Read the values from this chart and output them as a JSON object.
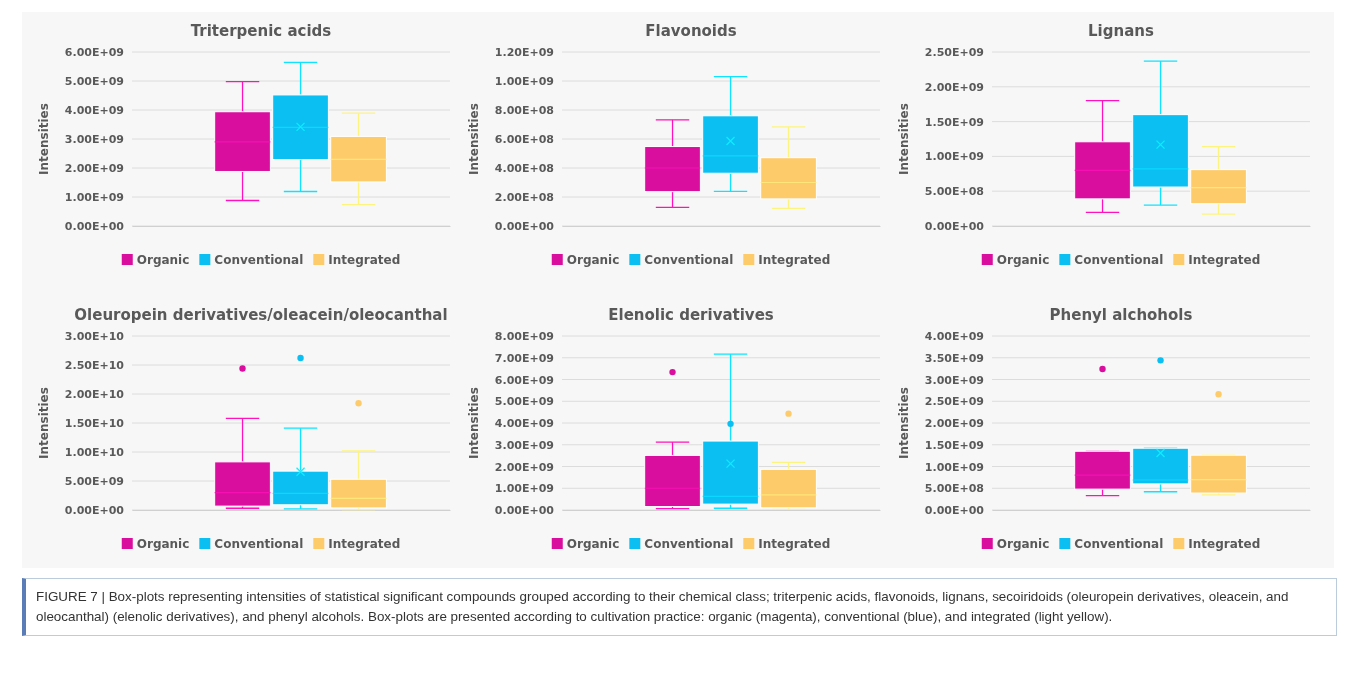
{
  "chart_data": [
    {
      "type": "box",
      "title": "Triterpenic acids",
      "ylabel": "Intensities",
      "categories": [
        null
      ],
      "grid": "y",
      "legend": "bottom",
      "ylim": [
        0,
        6000000000
      ],
      "yticks": [
        {
          "value": 0,
          "label": "0.00E+00"
        },
        {
          "value": 1000000000,
          "label": "1.00E+09"
        },
        {
          "value": 2000000000,
          "label": "2.00E+09"
        },
        {
          "value": 3000000000,
          "label": "3.00E+09"
        },
        {
          "value": 4000000000,
          "label": "4.00E+09"
        },
        {
          "value": 5000000000,
          "label": "5.00E+09"
        },
        {
          "value": 6000000000,
          "label": "6.00E+09"
        }
      ],
      "series": [
        {
          "name": "Organic",
          "color": "#d90e9e",
          "boxes": [
            {
              "low": 880000000,
              "q1": 1880000000,
              "median": 2900000000,
              "q3": 3940000000,
              "high": 4980000000
            }
          ]
        },
        {
          "name": "Conventional",
          "color": "#0bbff2",
          "boxes": [
            {
              "low": 1190000000,
              "q1": 2290000000,
              "median": 3400000000,
              "q3": 4520000000,
              "high": 5640000000,
              "mean": 3420000000
            }
          ]
        },
        {
          "name": "Integrated",
          "color": "#fecb6b",
          "boxes": [
            {
              "low": 740000000,
              "q1": 1520000000,
              "median": 2300000000,
              "q3": 3090000000,
              "high": 3890000000
            }
          ]
        }
      ]
    },
    {
      "type": "box",
      "title": "Flavonoids",
      "ylabel": "Intensities",
      "categories": [
        null
      ],
      "grid": "y",
      "legend": "bottom",
      "ylim": [
        0,
        1200000000
      ],
      "yticks": [
        {
          "value": 0,
          "label": "0.00E+00"
        },
        {
          "value": 200000000,
          "label": "2.00E+08"
        },
        {
          "value": 400000000,
          "label": "4.00E+08"
        },
        {
          "value": 600000000,
          "label": "6.00E+08"
        },
        {
          "value": 800000000,
          "label": "8.00E+08"
        },
        {
          "value": 1000000000,
          "label": "1.00E+09"
        },
        {
          "value": 1200000000,
          "label": "1.20E+09"
        }
      ],
      "series": [
        {
          "name": "Organic",
          "color": "#d90e9e",
          "boxes": [
            {
              "low": 129000000,
              "q1": 237000000,
              "median": 400000000,
              "q3": 548000000,
              "high": 732000000
            }
          ]
        },
        {
          "name": "Conventional",
          "color": "#0bbff2",
          "boxes": [
            {
              "low": 239000000,
              "q1": 364000000,
              "median": 483000000,
              "q3": 760000000,
              "high": 1030000000,
              "mean": 586000000
            }
          ]
        },
        {
          "name": "Integrated",
          "color": "#fecb6b",
          "boxes": [
            {
              "low": 122000000,
              "q1": 187000000,
              "median": 300000000,
              "q3": 471000000,
              "high": 684000000
            }
          ]
        }
      ]
    },
    {
      "type": "box",
      "title": "Lignans",
      "ylabel": "Intensities",
      "categories": [
        null
      ],
      "grid": "y",
      "legend": "bottom",
      "ylim": [
        0,
        2500000000
      ],
      "yticks": [
        {
          "value": 0,
          "label": "0.00E+00"
        },
        {
          "value": 500000000,
          "label": "5.00E+08"
        },
        {
          "value": 1000000000,
          "label": "1.00E+09"
        },
        {
          "value": 1500000000,
          "label": "1.50E+09"
        },
        {
          "value": 2000000000,
          "label": "2.00E+09"
        },
        {
          "value": 2500000000,
          "label": "2.50E+09"
        }
      ],
      "series": [
        {
          "name": "Organic",
          "color": "#d90e9e",
          "boxes": [
            {
              "low": 195000000,
              "q1": 390000000,
              "median": 800000000,
              "q3": 1210000000,
              "high": 1800000000
            }
          ]
        },
        {
          "name": "Conventional",
          "color": "#0bbff2",
          "boxes": [
            {
              "low": 300000000,
              "q1": 560000000,
              "median": 820000000,
              "q3": 1600000000,
              "high": 2370000000,
              "mean": 1170000000
            }
          ]
        },
        {
          "name": "Integrated",
          "color": "#fecb6b",
          "boxes": [
            {
              "low": 170000000,
              "q1": 320000000,
              "median": 550000000,
              "q3": 810000000,
              "high": 1140000000
            }
          ]
        }
      ]
    },
    {
      "type": "box",
      "title": "Oleuropein derivatives/oleacein/oleocanthal",
      "ylabel": "Intensities",
      "categories": [
        null
      ],
      "grid": "y",
      "legend": "bottom",
      "ylim": [
        0,
        30000000000
      ],
      "yticks": [
        {
          "value": 0,
          "label": "0.00E+00"
        },
        {
          "value": 5000000000,
          "label": "5.00E+09"
        },
        {
          "value": 10000000000,
          "label": "1.00E+10"
        },
        {
          "value": 15000000000,
          "label": "1.50E+10"
        },
        {
          "value": 20000000000,
          "label": "2.00E+10"
        },
        {
          "value": 25000000000,
          "label": "2.50E+10"
        },
        {
          "value": 30000000000,
          "label": "3.00E+10"
        }
      ],
      "series": [
        {
          "name": "Organic",
          "color": "#d90e9e",
          "boxes": [
            {
              "low": 300000000,
              "q1": 670000000,
              "median": 3000000000,
              "q3": 8300000000,
              "high": 15800000000,
              "outliers": [
                24400000000
              ]
            }
          ]
        },
        {
          "name": "Conventional",
          "color": "#0bbff2",
          "boxes": [
            {
              "low": 200000000,
              "q1": 900000000,
              "median": 2850000000,
              "q3": 6700000000,
              "high": 14100000000,
              "mean": 6600000000,
              "outliers": [
                26200000000
              ]
            }
          ]
        },
        {
          "name": "Integrated",
          "color": "#fecb6b",
          "boxes": [
            {
              "low": 60000000,
              "q1": 360000000,
              "median": 2000000000,
              "q3": 5300000000,
              "high": 10200000000,
              "outliers": [
                18400000000
              ]
            }
          ]
        }
      ]
    },
    {
      "type": "box",
      "title": "Elenolic derivatives",
      "ylabel": "Intensities",
      "categories": [
        null
      ],
      "grid": "y",
      "legend": "bottom",
      "ylim": [
        0,
        8000000000
      ],
      "yticks": [
        {
          "value": 0,
          "label": "0.00E+00"
        },
        {
          "value": 1000000000,
          "label": "1.00E+09"
        },
        {
          "value": 2000000000,
          "label": "2.00E+09"
        },
        {
          "value": 3000000000,
          "label": "3.00E+09"
        },
        {
          "value": 4000000000,
          "label": "4.00E+09"
        },
        {
          "value": 5000000000,
          "label": "5.00E+09"
        },
        {
          "value": 6000000000,
          "label": "6.00E+09"
        },
        {
          "value": 7000000000,
          "label": "7.00E+09"
        },
        {
          "value": 8000000000,
          "label": "8.00E+09"
        }
      ],
      "series": [
        {
          "name": "Organic",
          "color": "#d90e9e",
          "boxes": [
            {
              "low": 60000000,
              "q1": 160000000,
              "median": 1000000000,
              "q3": 2510000000,
              "high": 3120000000,
              "outliers": [
                6340000000
              ]
            }
          ]
        },
        {
          "name": "Conventional",
          "color": "#0bbff2",
          "boxes": [
            {
              "low": 80000000,
              "q1": 270000000,
              "median": 630000000,
              "q3": 3170000000,
              "high": 7170000000,
              "mean": 2130000000,
              "outliers": [
                3960000000
              ]
            }
          ]
        },
        {
          "name": "Integrated",
          "color": "#fecb6b",
          "boxes": [
            {
              "low": 30000000,
              "q1": 100000000,
              "median": 700000000,
              "q3": 1870000000,
              "high": 2190000000,
              "outliers": [
                4430000000
              ]
            }
          ]
        }
      ]
    },
    {
      "type": "box",
      "title": "Phenyl alchohols",
      "ylabel": "Intensities",
      "categories": [
        null
      ],
      "grid": "y",
      "legend": "bottom",
      "ylim": [
        0,
        4000000000
      ],
      "yticks": [
        {
          "value": 0,
          "label": "0.00E+00"
        },
        {
          "value": 500000000,
          "label": "5.00E+08"
        },
        {
          "value": 1000000000,
          "label": "1.00E+09"
        },
        {
          "value": 1500000000,
          "label": "1.50E+09"
        },
        {
          "value": 2000000000,
          "label": "2.00E+09"
        },
        {
          "value": 2500000000,
          "label": "2.50E+09"
        },
        {
          "value": 3000000000,
          "label": "3.00E+09"
        },
        {
          "value": 3500000000,
          "label": "3.50E+09"
        },
        {
          "value": 4000000000,
          "label": "4.00E+09"
        }
      ],
      "series": [
        {
          "name": "Organic",
          "color": "#d90e9e",
          "boxes": [
            {
              "low": 330000000,
              "q1": 480000000,
              "median": 800000000,
              "q3": 1350000000,
              "high": 1350000000,
              "outliers": [
                3240000000
              ]
            }
          ]
        },
        {
          "name": "Conventional",
          "color": "#0bbff2",
          "boxes": [
            {
              "low": 420000000,
              "q1": 600000000,
              "median": 690000000,
              "q3": 1420000000,
              "high": 1420000000,
              "mean": 1310000000,
              "outliers": [
                3440000000
              ]
            }
          ]
        },
        {
          "name": "Integrated",
          "color": "#fecb6b",
          "boxes": [
            {
              "low": 350000000,
              "q1": 390000000,
              "median": 700000000,
              "q3": 1260000000,
              "high": 1260000000,
              "outliers": [
                2660000000
              ]
            }
          ]
        }
      ],
      "annotations": [
        "FIGURE 7 | Box-plots representing intensities of statistical significant compounds grouped according to their chemical class; triterpenic acids, flavonoids, lignans, secoiridoids (oleuropein derivatives, oleacein, and oleocanthal) (elenolic derivatives), and phenyl alcohols. Box-plots are presented according to cultivation practice: organic (magenta), conventional (blue), and integrated (light yellow)."
      ]
    }
  ]
}
